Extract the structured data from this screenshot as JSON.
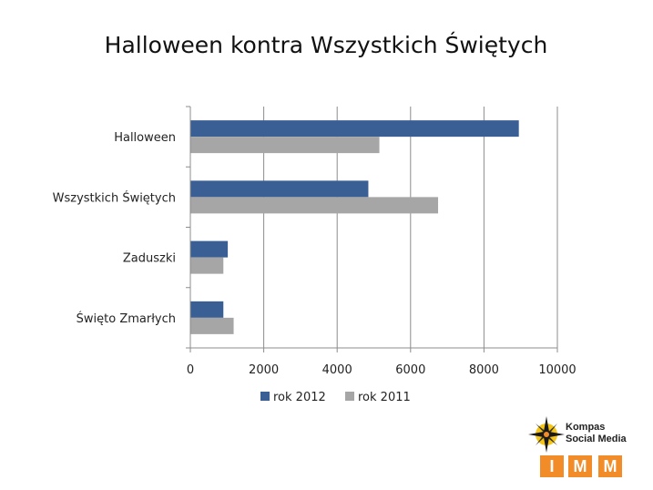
{
  "chart_data": {
    "type": "bar",
    "orientation": "horizontal",
    "title": "Halloween kontra Wszystkich Świętych",
    "categories": [
      "Halloween",
      "Wszystkich Świętych",
      "Zaduszki",
      "Święto Zmarłych"
    ],
    "series": [
      {
        "name": "rok 2012",
        "color": "#3a5f95",
        "values": [
          8950,
          4850,
          1020,
          900
        ]
      },
      {
        "name": "rok 2011",
        "color": "#a6a6a6",
        "values": [
          5150,
          6750,
          900,
          1180
        ]
      }
    ],
    "xlim": [
      0,
      10000
    ],
    "xticks": [
      0,
      2000,
      4000,
      6000,
      8000,
      10000
    ],
    "grid": true,
    "legend_position": "bottom"
  },
  "logo": {
    "line1": "Kompas",
    "line2": "Social Media",
    "letters": [
      "I",
      "M",
      "M"
    ],
    "accent": "#f28c28"
  }
}
